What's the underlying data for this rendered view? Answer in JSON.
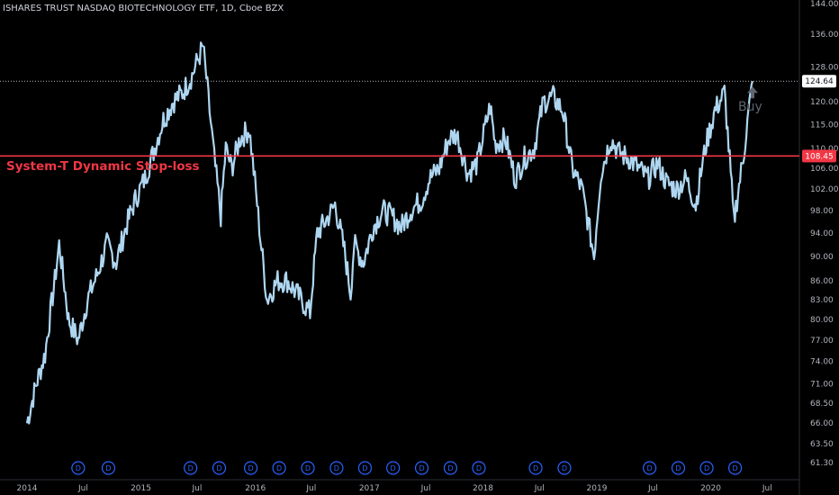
{
  "chart_data": {
    "type": "line",
    "title": "ISHARES TRUST NASDAQ BIOTECHNOLOGY ETF, 1D, Cboe BZX",
    "x_ticks": [
      "2014",
      "Jul",
      "2015",
      "Jul",
      "2016",
      "Jul",
      "2017",
      "Jul",
      "2018",
      "Jul",
      "2019",
      "Jul",
      "2020",
      "Jul"
    ],
    "y_ticks": [
      "144.00",
      "136.00",
      "128.00",
      "124.64",
      "120.00",
      "115.00",
      "110.00",
      "108.45",
      "106.00",
      "102.00",
      "98.00",
      "94.00",
      "90.00",
      "86.00",
      "83.00",
      "80.00",
      "77.00",
      "74.00",
      "71.00",
      "68.50",
      "66.00",
      "63.50",
      "61.30"
    ],
    "y_scale": "log",
    "ylim": [
      60.5,
      144
    ],
    "series": [
      {
        "x": [
          "2014-01-02",
          "2014-02-01",
          "2014-03-01",
          "2014-04-01",
          "2014-04-15",
          "2014-05-15",
          "2014-06-15",
          "2014-07-15",
          "2014-08-15",
          "2014-09-15",
          "2014-10-15",
          "2014-11-15",
          "2014-12-15",
          "2015-01-15",
          "2015-02-15",
          "2015-03-15",
          "2015-04-15",
          "2015-05-15",
          "2015-06-15",
          "2015-07-20",
          "2015-08-10",
          "2015-08-25",
          "2015-09-15",
          "2015-10-01",
          "2015-10-20",
          "2015-11-15",
          "2015-12-15",
          "2016-01-20",
          "2016-02-10",
          "2016-03-15",
          "2016-04-15",
          "2016-05-15",
          "2016-06-27",
          "2016-07-20",
          "2016-08-15",
          "2016-09-15",
          "2016-10-15",
          "2016-11-04",
          "2016-11-15",
          "2016-12-15",
          "2017-01-15",
          "2017-02-15",
          "2017-03-15",
          "2017-04-15",
          "2017-05-15",
          "2017-06-20",
          "2017-07-15",
          "2017-08-15",
          "2017-09-15",
          "2017-10-10",
          "2017-11-15",
          "2017-12-15",
          "2018-01-25",
          "2018-02-10",
          "2018-03-15",
          "2018-04-15",
          "2018-05-15",
          "2018-06-15",
          "2018-07-15",
          "2018-08-15",
          "2018-09-15",
          "2018-10-15",
          "2018-11-15",
          "2018-12-24",
          "2019-01-15",
          "2019-02-15",
          "2019-03-15",
          "2019-04-15",
          "2019-05-15",
          "2019-06-15",
          "2019-07-15",
          "2019-08-15",
          "2019-09-15",
          "2019-10-15",
          "2019-11-15",
          "2019-12-15",
          "2020-01-15",
          "2020-02-15",
          "2020-03-16",
          "2020-04-15",
          "2020-05-15"
        ],
        "values": [
          66,
          71,
          75,
          86,
          92,
          80,
          77,
          83,
          87,
          92,
          89,
          95,
          100,
          104,
          110,
          116,
          120,
          122,
          126,
          133,
          118,
          108,
          97,
          110,
          106,
          112,
          114,
          93,
          83,
          86,
          86,
          84,
          81,
          94,
          96,
          99,
          91,
          84,
          92,
          89,
          95,
          98,
          97,
          95,
          98,
          100,
          104,
          106,
          112,
          113,
          105,
          107,
          119,
          111,
          112,
          104,
          108,
          110,
          120,
          121,
          118,
          106,
          102,
          90,
          105,
          112,
          109,
          108,
          106,
          104,
          107,
          103,
          102,
          104,
          99,
          110,
          118,
          122,
          96,
          108,
          124.64
        ]
      }
    ],
    "annotations": {
      "stop_loss": {
        "label": "System-T Dynamic Stop-loss",
        "value": 108.45,
        "color": "#f23645"
      },
      "last_price": {
        "value": 124.64,
        "label": "124.64"
      },
      "buy_marker": {
        "label": "Buy",
        "date": "2020-05-15"
      }
    },
    "dividends": {
      "label": "D",
      "dates": [
        "2014-06-15",
        "2014-09-20",
        "2015-06-10",
        "2015-09-10",
        "2015-12-20",
        "2016-03-20",
        "2016-06-20",
        "2016-09-20",
        "2016-12-20",
        "2017-03-20",
        "2017-06-20",
        "2017-09-20",
        "2017-12-20",
        "2018-06-20",
        "2018-09-20",
        "2019-06-20",
        "2019-09-20",
        "2019-12-20",
        "2020-03-20"
      ]
    },
    "colors": {
      "line": "#aed6f1",
      "background": "#000000",
      "axis_text": "#b2b5be",
      "stop_loss": "#f23645",
      "dividend": "#2962ff",
      "last_price_tag": "#ffffff"
    },
    "grid": false
  }
}
